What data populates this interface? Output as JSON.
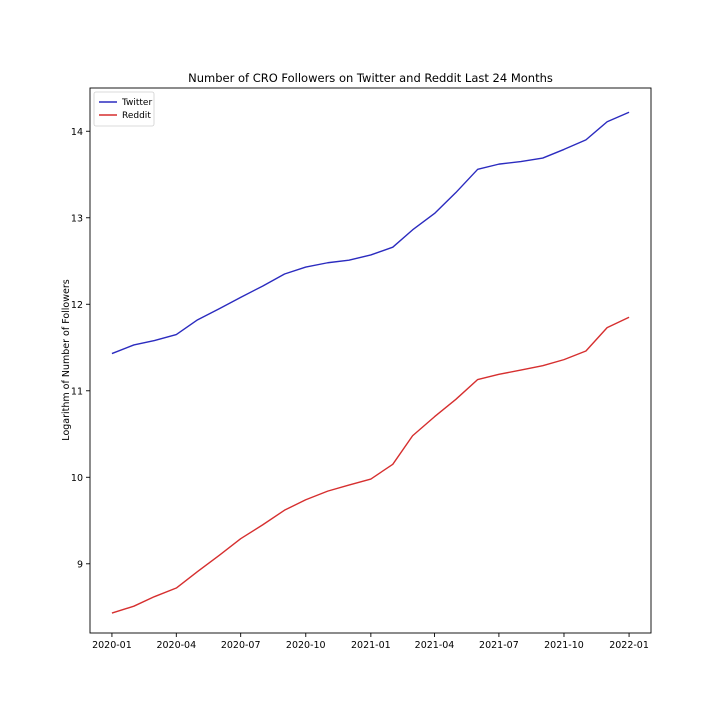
{
  "chart_data": {
    "type": "line",
    "title": "Number of CRO Followers on Twitter and Reddit Last 24 Months",
    "xlabel": "",
    "ylabel": "Logarithm of Number of Followers",
    "x": [
      "2020-01",
      "2020-02",
      "2020-03",
      "2020-04",
      "2020-05",
      "2020-06",
      "2020-07",
      "2020-08",
      "2020-09",
      "2020-10",
      "2020-11",
      "2020-12",
      "2021-01",
      "2021-02",
      "2021-03",
      "2021-04",
      "2021-05",
      "2021-06",
      "2021-07",
      "2021-08",
      "2021-09",
      "2021-10",
      "2021-11",
      "2021-12",
      "2022-01"
    ],
    "xticks": [
      "2020-01",
      "2020-04",
      "2020-07",
      "2020-10",
      "2021-01",
      "2021-04",
      "2021-07",
      "2021-10",
      "2022-01"
    ],
    "yticks": [
      9,
      10,
      11,
      12,
      13,
      14
    ],
    "ylim": [
      8.2,
      14.5
    ],
    "xlim": [
      "2019-12-01",
      "2022-02-01"
    ],
    "grid": false,
    "legend_position": "top-left",
    "series": [
      {
        "name": "Twitter",
        "color": "#2b2bbf",
        "values": [
          11.43,
          11.53,
          11.58,
          11.65,
          11.82,
          11.95,
          12.08,
          12.21,
          12.35,
          12.43,
          12.48,
          12.51,
          12.57,
          12.66,
          12.86,
          13.05,
          13.29,
          13.56,
          13.62,
          13.65,
          13.69,
          13.79,
          13.9,
          14.11,
          14.22
        ]
      },
      {
        "name": "Reddit",
        "color": "#d62f2f",
        "values": [
          8.43,
          8.51,
          8.62,
          8.72,
          8.91,
          9.1,
          9.29,
          9.45,
          9.62,
          9.74,
          9.84,
          9.91,
          9.98,
          10.15,
          10.48,
          10.7,
          10.9,
          11.13,
          11.19,
          11.24,
          11.29,
          11.36,
          11.46,
          11.73,
          11.85
        ]
      }
    ]
  }
}
